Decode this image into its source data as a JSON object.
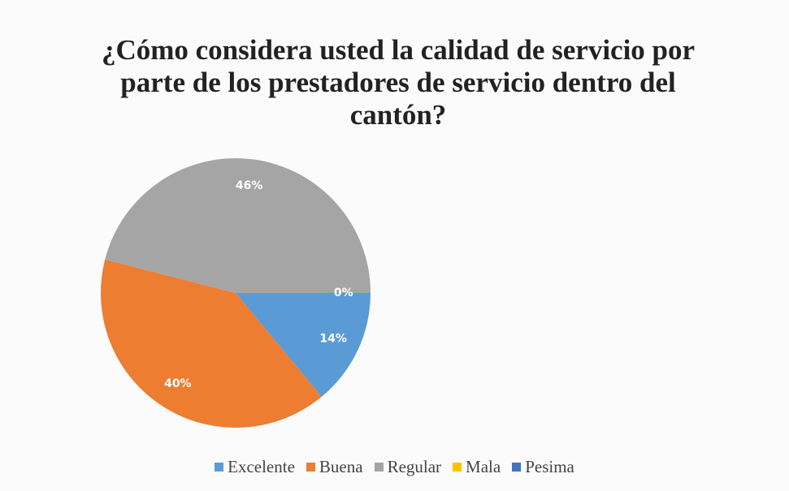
{
  "chart_data": {
    "type": "pie",
    "title": "¿Cómo considera usted la calidad de servicio por parte de los prestadores de servicio dentro del cantón?",
    "categories": [
      "Excelente",
      "Buena",
      "Regular",
      "Mala",
      "Pesima"
    ],
    "values": [
      14,
      40,
      46,
      0,
      0
    ],
    "value_labels": [
      "14%",
      "40%",
      "46%",
      "0%",
      null
    ],
    "colors": [
      "#5b9bd5",
      "#ed7d31",
      "#a5a5a5",
      "#ffc000",
      "#4472c4"
    ],
    "legend": "bottom"
  }
}
